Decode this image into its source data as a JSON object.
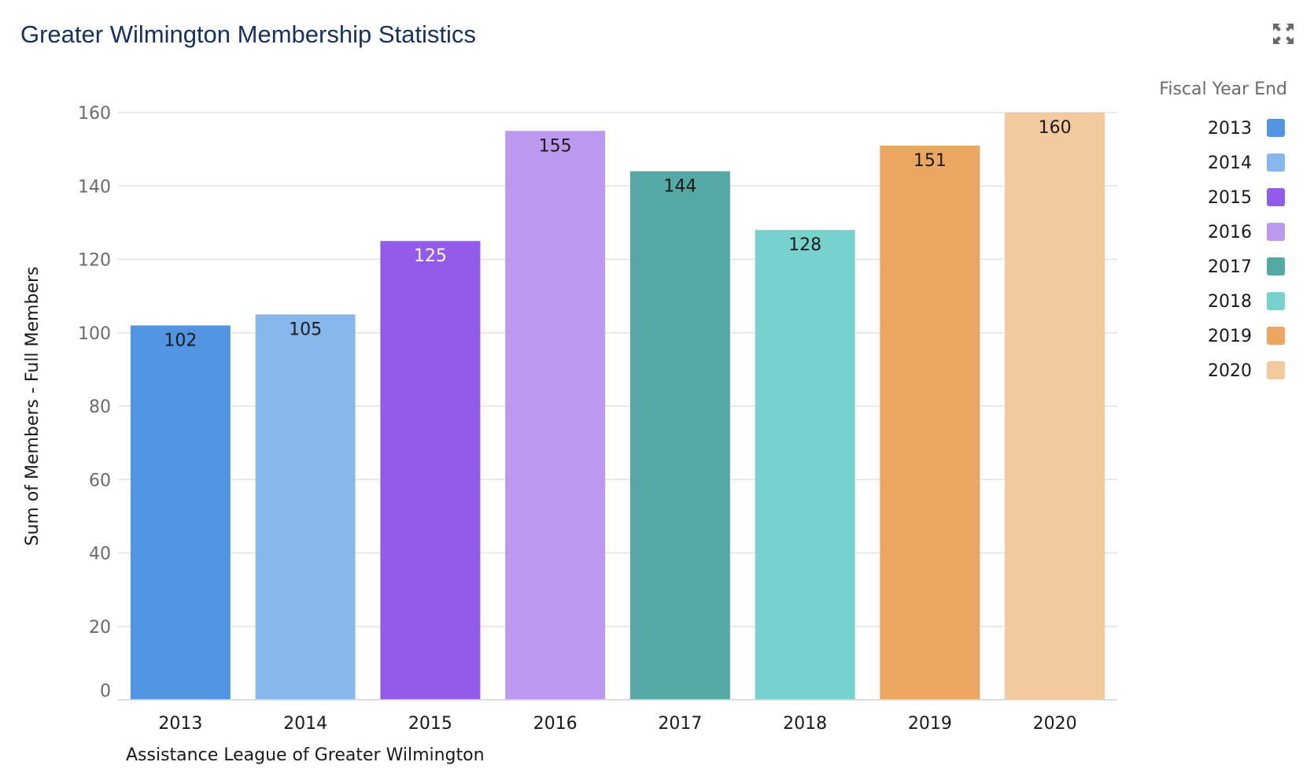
{
  "header": {
    "title": "Greater Wilmington Membership Statistics",
    "expand_icon": "expand-arrows-icon"
  },
  "chart_data": {
    "type": "bar",
    "title": "Greater Wilmington Membership Statistics",
    "categories": [
      "2013",
      "2014",
      "2015",
      "2016",
      "2017",
      "2018",
      "2019",
      "2020"
    ],
    "values": [
      102,
      105,
      125,
      155,
      144,
      128,
      151,
      160
    ],
    "colors": [
      "#5295e3",
      "#86b8ec",
      "#925ce9",
      "#bb99ee",
      "#54a9a4",
      "#77d2ce",
      "#eba662",
      "#f2ca9e"
    ],
    "label_colors": [
      "#1a1a1a",
      "#1a1a1a",
      "#ffffff",
      "#1a1a1a",
      "#1a1a1a",
      "#1a1a1a",
      "#1a1a1a",
      "#1a1a1a"
    ],
    "xlabel": "Assistance League of Greater Wilmington",
    "ylabel": "Sum of Members - Full Members",
    "ylim": [
      0,
      160
    ],
    "yticks": [
      0,
      20,
      40,
      60,
      80,
      100,
      120,
      140,
      160
    ],
    "grid": true,
    "legend": {
      "title": "Fiscal Year End",
      "placement": "right",
      "entries": [
        "2013",
        "2014",
        "2015",
        "2016",
        "2017",
        "2018",
        "2019",
        "2020"
      ]
    }
  }
}
